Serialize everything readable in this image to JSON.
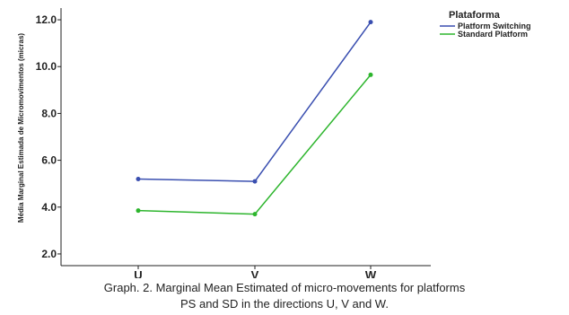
{
  "chart_data": {
    "type": "line",
    "ylabel": "Média Marginal Estimada de Micromovimentos (micras)",
    "xlabel": "",
    "categories": [
      "U",
      "V",
      "W"
    ],
    "ylim": [
      1.5,
      12.5
    ],
    "yticks": [
      2.0,
      4.0,
      6.0,
      8.0,
      10.0,
      12.0
    ],
    "ytick_labels": [
      "2.0",
      "4.0",
      "6.0",
      "8.0",
      "10.0",
      "12.0"
    ],
    "legend": {
      "title": "Plataforma",
      "position": "top-right"
    },
    "grid": false,
    "series": [
      {
        "name": "Platform Switching",
        "color": "#3a4fb0",
        "values": [
          5.2,
          5.1,
          11.9
        ]
      },
      {
        "name": "Standard Platform",
        "color": "#2db52d",
        "values": [
          3.85,
          3.7,
          9.65
        ]
      }
    ]
  },
  "caption": {
    "line1": "Graph. 2. Marginal Mean Estimated of micro-movements for platforms",
    "line2": "PS and SD in the directions U, V and W."
  }
}
